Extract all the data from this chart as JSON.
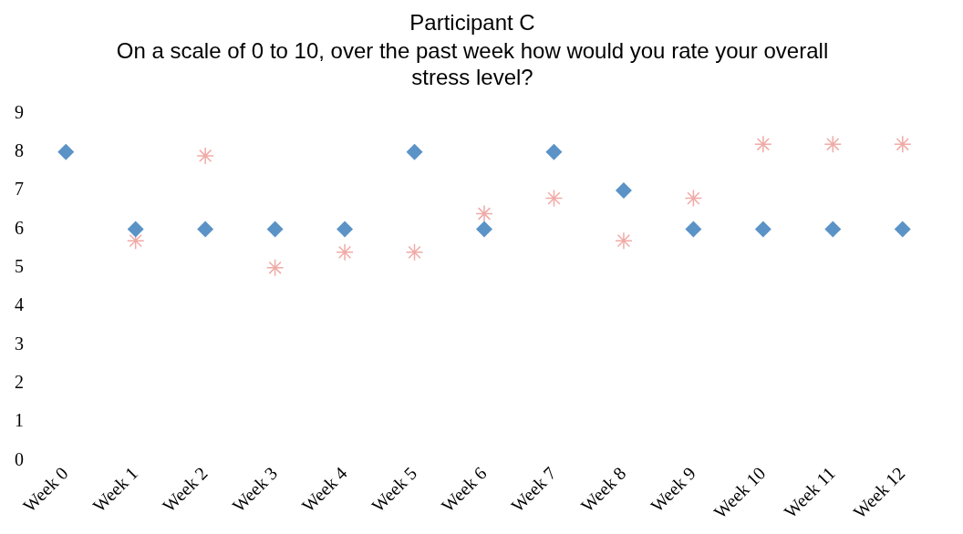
{
  "chart_data": {
    "type": "scatter",
    "title": "Participant C",
    "subtitle": "On a scale of 0 to 10, over the past week how would you rate your overall stress level?",
    "categories": [
      "Week 0",
      "Week 1",
      "Week 2",
      "Week 3",
      "Week 4",
      "Week 5",
      "Week 6",
      "Week 7",
      "Week 8",
      "Week 9",
      "Week 10",
      "Week 11",
      "Week 12"
    ],
    "series": [
      {
        "color": "#5b93c7",
        "marker": "diamond",
        "values": [
          8,
          6,
          6,
          6,
          6,
          8,
          6,
          8,
          7,
          6,
          6,
          6,
          6
        ]
      },
      {
        "color": "#f0aaa6",
        "marker": "cross",
        "values": [
          null,
          5.7,
          7.9,
          5.0,
          5.4,
          5.4,
          6.4,
          6.8,
          5.7,
          6.8,
          8.2,
          8.2,
          8.2
        ]
      }
    ],
    "ylim": [
      0,
      9
    ],
    "yticks": [
      0,
      1,
      2,
      3,
      4,
      5,
      6,
      7,
      8,
      9
    ],
    "grid": false,
    "legend": false
  }
}
